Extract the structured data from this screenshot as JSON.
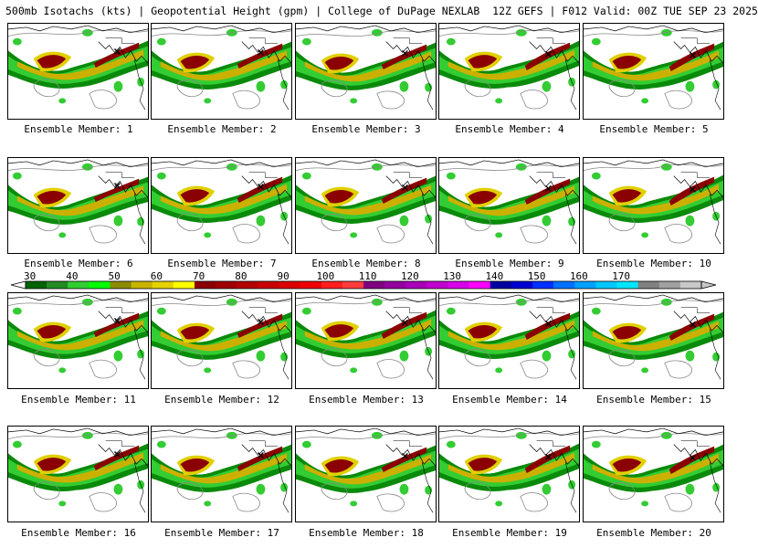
{
  "header": {
    "title": "500mb Isotachs (kts) | Geopotential Height (gpm) | College of DuPage NEXLAB",
    "run_info": "12Z GEFS | F012 Valid: 00Z TUE SEP 23 2025"
  },
  "panels": [
    {
      "label": "Ensemble Member: 1"
    },
    {
      "label": "Ensemble Member: 2"
    },
    {
      "label": "Ensemble Member: 3"
    },
    {
      "label": "Ensemble Member: 4"
    },
    {
      "label": "Ensemble Member: 5"
    },
    {
      "label": "Ensemble Member: 6"
    },
    {
      "label": "Ensemble Member: 7"
    },
    {
      "label": "Ensemble Member: 8"
    },
    {
      "label": "Ensemble Member: 9"
    },
    {
      "label": "Ensemble Member: 10"
    },
    {
      "label": "Ensemble Member: 11"
    },
    {
      "label": "Ensemble Member: 12"
    },
    {
      "label": "Ensemble Member: 13"
    },
    {
      "label": "Ensemble Member: 14"
    },
    {
      "label": "Ensemble Member: 15"
    },
    {
      "label": "Ensemble Member: 16"
    },
    {
      "label": "Ensemble Member: 17"
    },
    {
      "label": "Ensemble Member: 18"
    },
    {
      "label": "Ensemble Member: 19"
    },
    {
      "label": "Ensemble Member: 20"
    }
  ],
  "colorbar": {
    "ticks": [
      "30",
      "40",
      "50",
      "60",
      "70",
      "80",
      "90",
      "100",
      "110",
      "120",
      "130",
      "140",
      "150",
      "160",
      "170"
    ],
    "colors": [
      "#006400",
      "#228b22",
      "#32cd32",
      "#00ff00",
      "#8b8b00",
      "#c8b400",
      "#e6d200",
      "#ffff00",
      "#8b0000",
      "#a00000",
      "#b40000",
      "#c80000",
      "#dc0000",
      "#f00000",
      "#ff1e1e",
      "#ff3c3c",
      "#800080",
      "#9400a0",
      "#a800b8",
      "#c000d0",
      "#d800e8",
      "#ff00ff",
      "#0000a0",
      "#0000d0",
      "#0030ff",
      "#0070ff",
      "#00a0ff",
      "#00c8ff",
      "#00e6ff",
      "#808080",
      "#a0a0a0",
      "#c8c8c8"
    ]
  }
}
